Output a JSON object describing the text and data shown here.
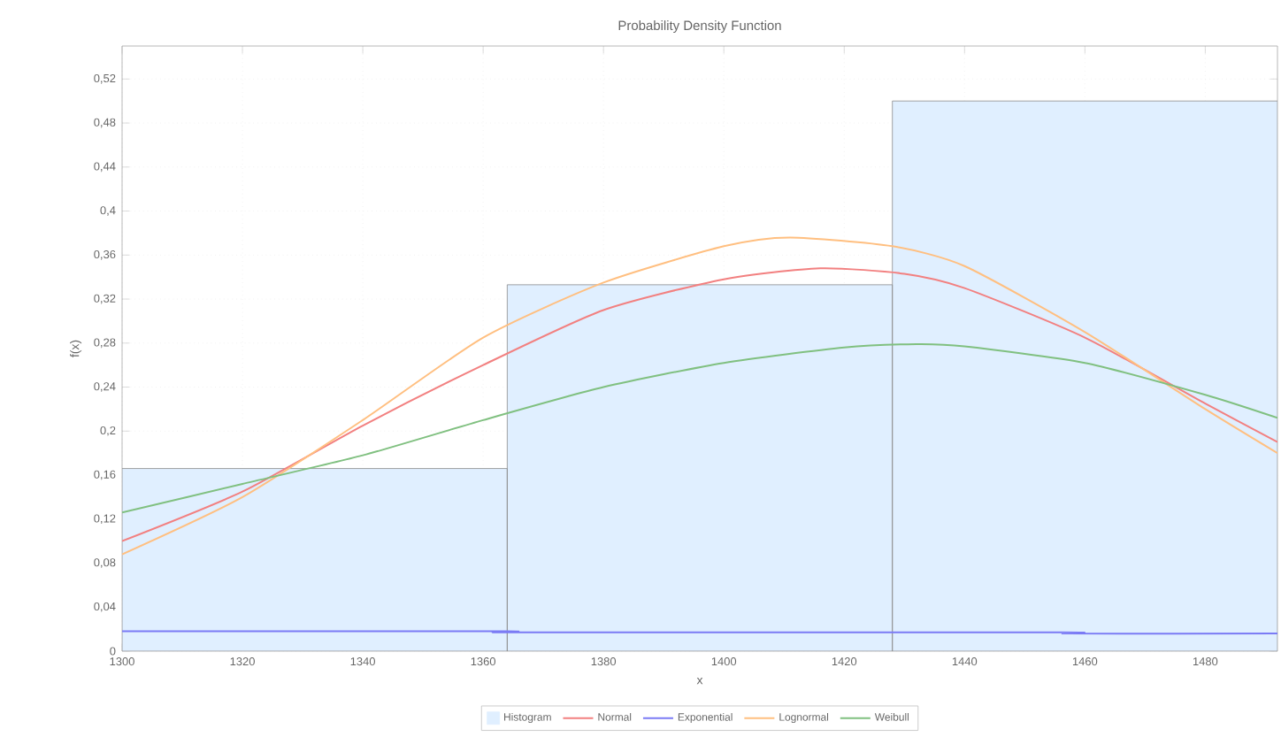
{
  "chart_data": {
    "type": "line",
    "title": "Probability Density Function",
    "xlabel": "x",
    "ylabel": "f(x)",
    "xlim": [
      1300,
      1492
    ],
    "ylim": [
      0,
      0.55
    ],
    "xticks": [
      1300,
      1320,
      1340,
      1360,
      1380,
      1400,
      1420,
      1440,
      1460,
      1480
    ],
    "yticks": [
      0,
      {
        "value": 0.04,
        "label": "0,04"
      },
      {
        "value": 0.08,
        "label": "0,08"
      },
      {
        "value": 0.12,
        "label": "0,12"
      },
      {
        "value": 0.16,
        "label": "0,16"
      },
      {
        "value": 0.2,
        "label": "0,2"
      },
      {
        "value": 0.24,
        "label": "0,24"
      },
      {
        "value": 0.28,
        "label": "0,28"
      },
      {
        "value": 0.32,
        "label": "0,32"
      },
      {
        "value": 0.36,
        "label": "0,36"
      },
      {
        "value": 0.4,
        "label": "0,4"
      },
      {
        "value": 0.44,
        "label": "0,44"
      },
      {
        "value": 0.48,
        "label": "0,48"
      },
      {
        "value": 0.52,
        "label": "0,52"
      }
    ],
    "grid": true,
    "legend": "bottom",
    "marker": "none",
    "line_style": "solid",
    "series": [
      {
        "type": "histogram",
        "name": "Histogram",
        "color": "#e0efff",
        "bins": [
          1300,
          1364,
          1428,
          1492
        ],
        "values": [
          0.166,
          0.333,
          0.5
        ]
      },
      {
        "name": "Normal",
        "color": "#f28080",
        "x": [
          1300,
          1320,
          1340,
          1360,
          1380,
          1400,
          1416,
          1430,
          1440,
          1460,
          1480,
          1492
        ],
        "values": [
          0.1,
          0.145,
          0.205,
          0.26,
          0.31,
          0.338,
          0.348,
          0.343,
          0.33,
          0.285,
          0.225,
          0.19
        ]
      },
      {
        "name": "Exponential",
        "color": "#7b7bf5",
        "x": [
          1300,
          1364,
          1365,
          1456,
          1457,
          1492
        ],
        "values": [
          0.018,
          0.018,
          0.017,
          0.017,
          0.016,
          0.016
        ]
      },
      {
        "name": "Lognormal",
        "color": "#ffbf80",
        "x": [
          1300,
          1320,
          1340,
          1360,
          1380,
          1400,
          1411,
          1428,
          1440,
          1460,
          1480,
          1492
        ],
        "values": [
          0.088,
          0.14,
          0.21,
          0.285,
          0.335,
          0.368,
          0.376,
          0.368,
          0.35,
          0.29,
          0.22,
          0.18
        ]
      },
      {
        "name": "Weibull",
        "color": "#80c080",
        "x": [
          1300,
          1320,
          1340,
          1360,
          1380,
          1400,
          1420,
          1432,
          1440,
          1460,
          1480,
          1492
        ],
        "values": [
          0.126,
          0.152,
          0.178,
          0.21,
          0.24,
          0.262,
          0.276,
          0.279,
          0.277,
          0.262,
          0.233,
          0.212
        ]
      }
    ]
  }
}
